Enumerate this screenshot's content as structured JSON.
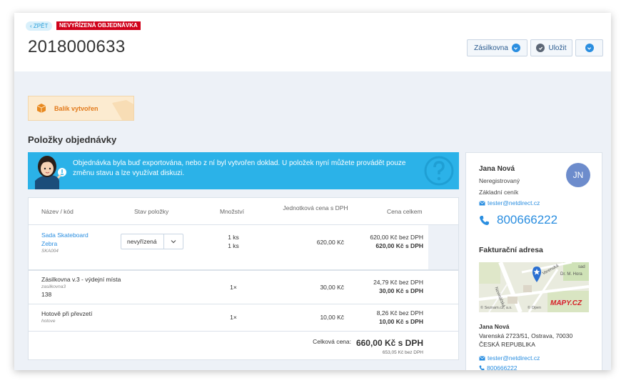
{
  "header": {
    "back_label": "ZPĚT",
    "status_badge": "NEVYŘÍZENÁ OBJEDNÁVKA",
    "order_number": "2018000633",
    "buttons": {
      "carrier": "Zásilkovna",
      "save": "Uložit"
    }
  },
  "banner": {
    "package_created": "Balík vytvořen"
  },
  "items_section": {
    "title": "Položky objednávky",
    "info_text": "Objednávka byla buď exportována, nebo z ní byl vytvořen doklad. U položek nyní můžete provádět pouze změnu stavu a lze využívat diskuzi.",
    "columns": {
      "name": "Název / kód",
      "state": "Stav položky",
      "quantity": "Množství",
      "unit_price": "Jednotková cena s DPH",
      "total": "Cena celkem"
    },
    "rows": [
      {
        "name_line1": "Sada Skateboard",
        "name_line2": "Zebra",
        "code": "SKA004",
        "state": "nevyřízená",
        "qty1": "1 ks",
        "qty2": "1 ks",
        "unit_price": "620,00 Kč",
        "total_net": "620,00 Kč bez DPH",
        "total_gross": "620,00 Kč s DPH"
      },
      {
        "name": "Zásilkovna v.3 - výdejní místa",
        "code": "zasilkovna3",
        "extra": "138",
        "qty": "1×",
        "unit_price": "30,00 Kč",
        "total_net": "24,79 Kč bez DPH",
        "total_gross": "30,00 Kč s DPH"
      },
      {
        "name": "Hotově při převzetí",
        "code": "hotove",
        "qty": "1×",
        "unit_price": "10,00 Kč",
        "total_net": "8,26 Kč bez DPH",
        "total_gross": "10,00 Kč s DPH"
      }
    ],
    "summary": {
      "label": "Celková cena:",
      "gross": "660,00 Kč s DPH",
      "net": "653,05 Kč bez DPH"
    }
  },
  "customer": {
    "name": "Jana Nová",
    "initials": "JN",
    "status": "Neregistrovaný",
    "pricelist": "Základní ceník",
    "email": "tester@netdirect.cz",
    "phone": "800666222",
    "billing_title": "Fakturační adresa",
    "map_labels": {
      "street1": "Novinářská",
      "street2": "Varenská",
      "place": "sad",
      "place2": "Dr. M. Hora",
      "copyright": "© Seznam.cz, a.s.",
      "copyright2": "© Open",
      "brand": "MAPY.CZ"
    },
    "billing": {
      "name": "Jana Nová",
      "street": "Varenská 2723/51, Ostrava, 70030",
      "country": "ČESKÁ REPUBLIKA",
      "email": "tester@netdirect.cz",
      "phone": "800666222"
    }
  },
  "colors": {
    "accent": "#2a8ee0",
    "danger": "#d0021b",
    "info": "#2bb2e8",
    "warning": "#e27a1b"
  }
}
